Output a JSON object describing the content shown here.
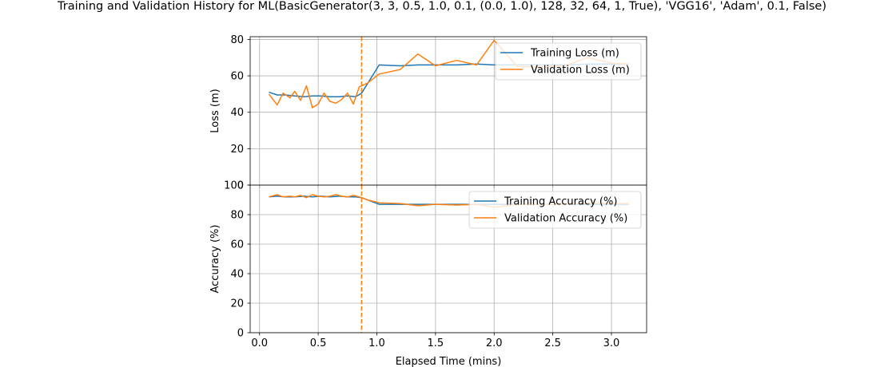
{
  "figure": {
    "title": "Training and Validation History for ML(BasicGenerator(3, 3, 0.5, 1.0, 0.1, (0.0, 1.0), 128, 32, 64, 1, True), 'VGG16', 'Adam', 0.1, False)"
  },
  "colors": {
    "training": "#1f77b4",
    "validation": "#ff7f0e",
    "grid": "#b0b0b0",
    "marker": "#ff7f0e"
  },
  "chart_data": [
    {
      "type": "line",
      "id": "loss",
      "ylabel": "Loss (m)",
      "xlabel": "",
      "ylim": [
        0,
        81.5
      ],
      "xlim": [
        -0.08,
        3.3
      ],
      "yticks": [
        0,
        20,
        40,
        60,
        80
      ],
      "xticks": [
        0.0,
        0.5,
        1.0,
        1.5,
        2.0,
        2.5,
        3.0
      ],
      "grid": true,
      "legend": "upper right",
      "vline_x": 0.87,
      "series": [
        {
          "name": "Training Loss (m)",
          "color": "#1f77b4",
          "x": [
            0.08,
            0.15,
            0.22,
            0.3,
            0.38,
            0.45,
            0.52,
            0.6,
            0.68,
            0.75,
            0.82,
            0.87,
            1.02,
            1.2,
            1.35,
            1.5,
            1.68,
            1.85,
            2.0,
            2.2,
            2.4,
            2.6,
            2.8,
            3.0,
            3.15
          ],
          "y": [
            51,
            49.5,
            49.5,
            49.0,
            48.5,
            49.0,
            49.0,
            48.5,
            48.5,
            49.0,
            48.5,
            50.5,
            66,
            65.5,
            66,
            66,
            66,
            66.5,
            66,
            66,
            66,
            66,
            66.5,
            66.5,
            66.5
          ]
        },
        {
          "name": "Validation Loss (m)",
          "color": "#ff7f0e",
          "x": [
            0.08,
            0.15,
            0.2,
            0.26,
            0.3,
            0.35,
            0.4,
            0.45,
            0.5,
            0.55,
            0.6,
            0.65,
            0.7,
            0.75,
            0.8,
            0.85,
            0.92,
            1.02,
            1.2,
            1.35,
            1.5,
            1.68,
            1.85,
            2.0,
            2.2,
            2.4,
            2.6,
            2.8,
            3.0,
            3.15
          ],
          "y": [
            50,
            44,
            50.5,
            48,
            51.5,
            46.5,
            54.5,
            42.5,
            44.5,
            50.5,
            46,
            45,
            47,
            50.5,
            44.5,
            54,
            56,
            61,
            63.5,
            72,
            65.5,
            68.5,
            66,
            79.5,
            65,
            65,
            65.5,
            70,
            67,
            66.5
          ]
        }
      ]
    },
    {
      "type": "line",
      "id": "accuracy",
      "ylabel": "Accuracy (%)",
      "xlabel": "Elapsed Time (mins)",
      "ylim": [
        0,
        100
      ],
      "xlim": [
        -0.08,
        3.3
      ],
      "yticks": [
        0,
        20,
        40,
        60,
        80,
        100
      ],
      "xticks": [
        0.0,
        0.5,
        1.0,
        1.5,
        2.0,
        2.5,
        3.0
      ],
      "grid": true,
      "legend": "upper right",
      "vline_x": 0.87,
      "series": [
        {
          "name": "Training Accuracy (%)",
          "color": "#1f77b4",
          "x": [
            0.08,
            0.15,
            0.22,
            0.3,
            0.38,
            0.45,
            0.52,
            0.6,
            0.68,
            0.75,
            0.82,
            0.87,
            1.02,
            1.2,
            1.35,
            1.5,
            1.68,
            1.85,
            2.0,
            2.2,
            2.4,
            2.6,
            2.8,
            3.0,
            3.15
          ],
          "y": [
            92,
            92.5,
            92,
            92,
            92.5,
            92,
            92.5,
            92,
            92.5,
            92,
            92,
            91.5,
            87,
            87,
            87,
            87,
            87,
            87,
            87,
            87,
            87,
            87,
            87,
            87,
            87
          ]
        },
        {
          "name": "Validation Accuracy (%)",
          "color": "#ff7f0e",
          "x": [
            0.08,
            0.15,
            0.2,
            0.26,
            0.3,
            0.35,
            0.4,
            0.45,
            0.5,
            0.55,
            0.6,
            0.65,
            0.7,
            0.75,
            0.8,
            0.85,
            0.92,
            1.02,
            1.2,
            1.35,
            1.5,
            1.68,
            1.85,
            2.0,
            2.2,
            2.4,
            2.6,
            2.8,
            3.0,
            3.15
          ],
          "y": [
            92,
            93.5,
            92,
            92.5,
            92,
            93,
            91.5,
            93.5,
            92.5,
            92,
            92.5,
            93.5,
            92.5,
            92,
            93,
            92,
            90,
            88,
            87.5,
            86,
            87,
            86.5,
            87,
            85,
            87,
            87,
            87,
            88,
            87.5,
            87.5
          ]
        }
      ]
    }
  ]
}
